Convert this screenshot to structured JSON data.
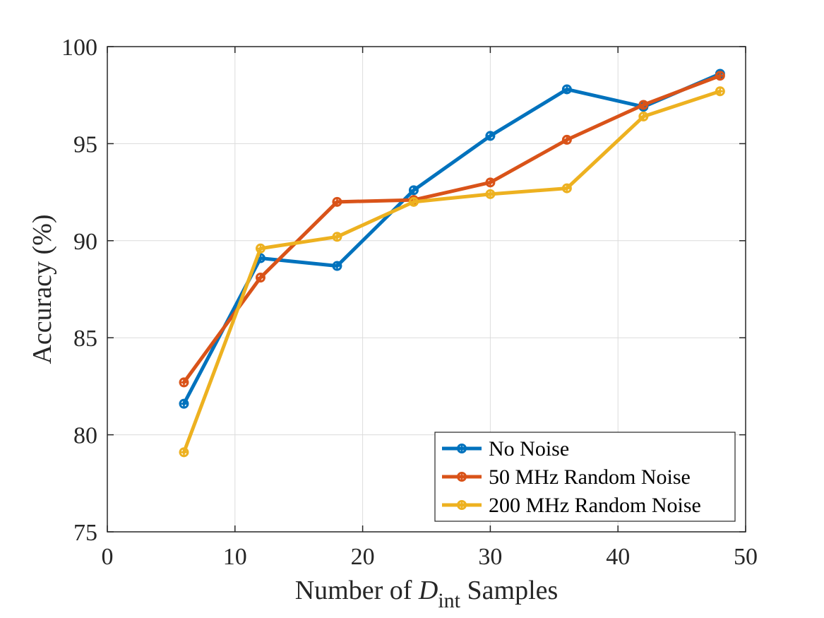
{
  "chart_data": {
    "type": "line",
    "title": "",
    "xlabel_parts": {
      "prefix": "Number of ",
      "symbol": "D",
      "subscript": "int",
      "suffix": " Samples"
    },
    "ylabel": "Accuracy (%)",
    "xlim": [
      0,
      50
    ],
    "ylim": [
      75,
      100
    ],
    "xticks": [
      0,
      10,
      20,
      30,
      40,
      50
    ],
    "yticks": [
      75,
      80,
      85,
      90,
      95,
      100
    ],
    "grid": true,
    "legend_position": "bottom-right",
    "x": [
      6,
      12,
      18,
      24,
      30,
      36,
      42,
      48
    ],
    "series": [
      {
        "name": "No Noise",
        "color": "#0072BD",
        "values": [
          81.6,
          89.1,
          88.7,
          92.6,
          95.4,
          97.8,
          96.9,
          98.6
        ]
      },
      {
        "name": "50 MHz Random Noise",
        "color": "#D95319",
        "values": [
          82.7,
          88.1,
          92.0,
          92.1,
          93.0,
          95.2,
          97.0,
          98.5
        ]
      },
      {
        "name": "200 MHz Random Noise",
        "color": "#EDB120",
        "values": [
          79.1,
          89.6,
          90.2,
          92.0,
          92.4,
          92.7,
          96.4,
          97.7
        ]
      }
    ]
  }
}
